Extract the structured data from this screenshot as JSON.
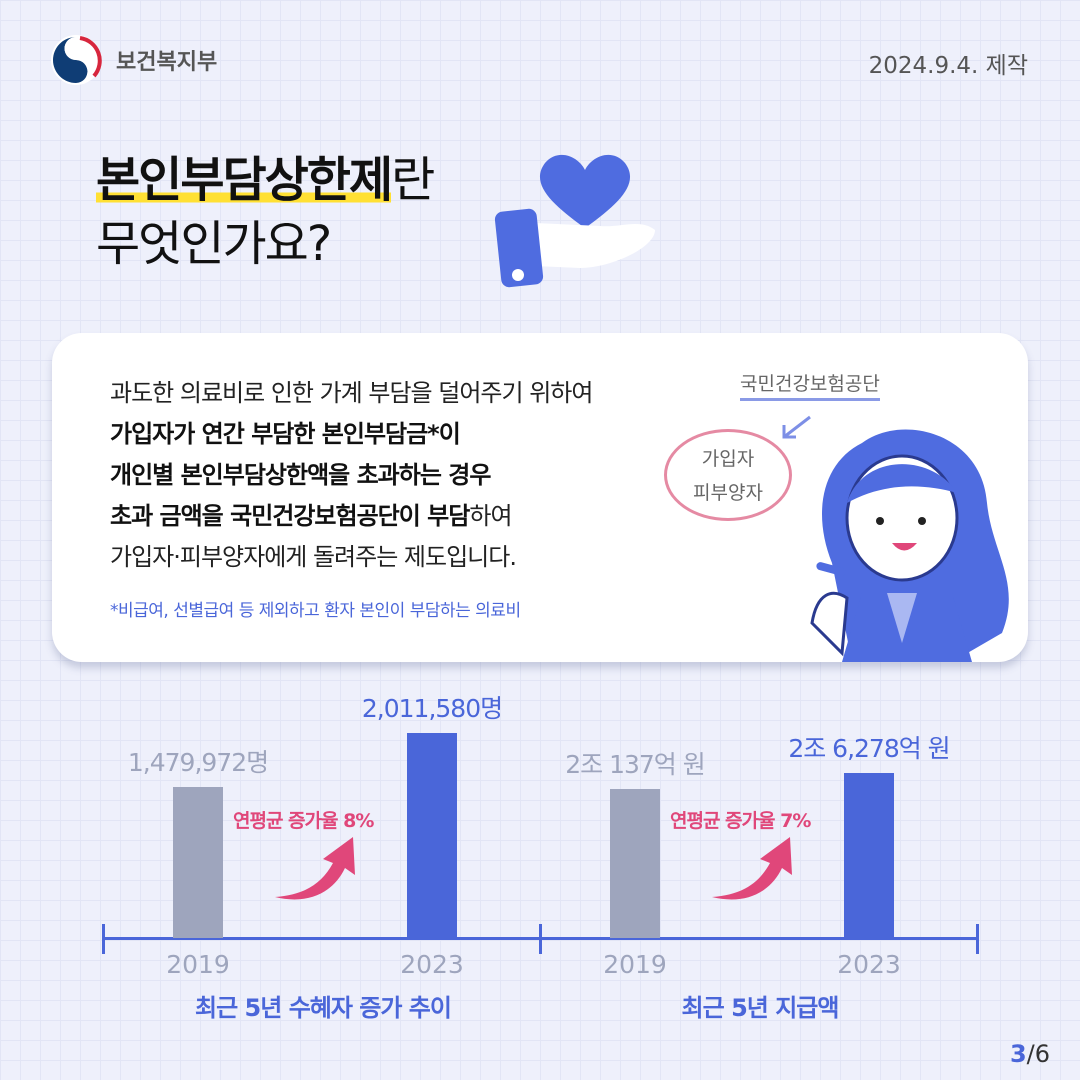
{
  "header": {
    "org_name": "보건복지부",
    "date": "2024.9.4. 제작"
  },
  "title": {
    "highlight": "본인부담상한제",
    "rest": "란",
    "line2": "무엇인가요?"
  },
  "card": {
    "lines": [
      "과도한 의료비로 인한 가계 부담을 덜어주기 위하여",
      "가입자가 연간 부담한 본인부담금*이",
      "개인별 본인부담상한액을 초과하는 경우",
      "초과 금액을 국민건강보험공단이 부담",
      "하여",
      "가입자·피부양자에게 돌려주는 제도입니다."
    ],
    "note": "*비급여, 선별급여 등 제외하고 환자 본인이 부담하는 의료비",
    "illustration": {
      "agency": "국민건강보험공단",
      "circle_line1": "가입자",
      "circle_line2": "피부양자"
    }
  },
  "colors": {
    "accent": "#4a66d9",
    "previous": "#9ea5bd",
    "growth": "#e0477a",
    "highlight": "#ffe033"
  },
  "chart_data": [
    {
      "type": "bar",
      "title": "최근 5년 수혜자 증가 추이",
      "categories": [
        "2019",
        "2023"
      ],
      "values": [
        1479972,
        2011580
      ],
      "value_labels": [
        "1,479,972명",
        "2,011,580명"
      ],
      "annotation": "연평균 증가율 8%",
      "unit": "명"
    },
    {
      "type": "bar",
      "title": "최근 5년 지급액",
      "categories": [
        "2019",
        "2023"
      ],
      "values": [
        20137,
        26278
      ],
      "value_labels": [
        "2조 137억 원",
        "2조 6,278억 원"
      ],
      "annotation": "연평균 증가율 7%",
      "unit": "억 원"
    }
  ],
  "pagination": {
    "current": "3",
    "total": "/6"
  }
}
